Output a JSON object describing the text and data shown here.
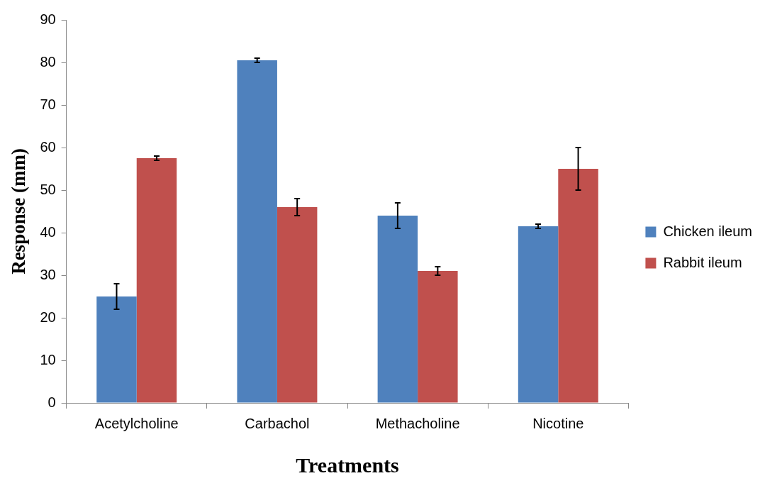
{
  "chart_data": {
    "type": "bar",
    "xlabel": "Treatments",
    "ylabel": "Response (mm)",
    "categories": [
      "Acetylcholine",
      "Carbachol",
      "Methacholine",
      "Nicotine"
    ],
    "series": [
      {
        "name": "Chicken ileum",
        "color": "#4f81bd",
        "values": [
          25,
          80.5,
          44,
          41.5
        ],
        "errors": [
          3,
          0.5,
          3,
          0.5
        ]
      },
      {
        "name": "Rabbit ileum",
        "color": "#c0504d",
        "values": [
          57.5,
          46,
          31,
          55
        ],
        "errors": [
          0.5,
          2,
          1,
          5
        ]
      }
    ],
    "ylim": [
      0,
      90
    ],
    "yticks": [
      0,
      10,
      20,
      30,
      40,
      50,
      60,
      70,
      80,
      90
    ],
    "grid": false,
    "legend": "right"
  }
}
